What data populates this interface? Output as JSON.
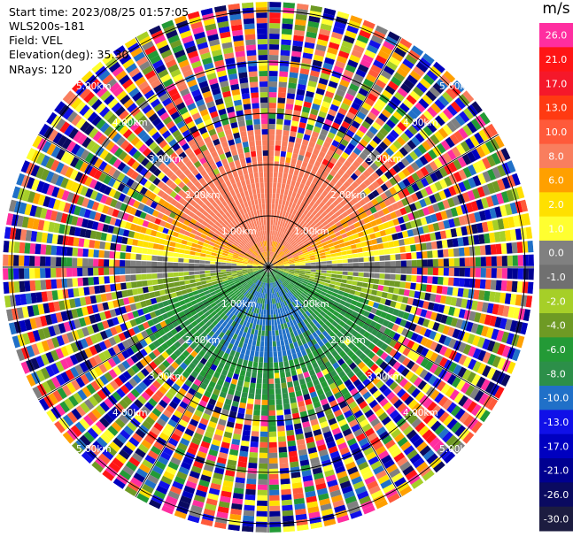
{
  "header": {
    "start_time": "Start time: 2023/08/25 01:57:05",
    "instrument": "WLS200s-181",
    "field": "Field: VEL",
    "elevation": "Elevation(deg): 35.30",
    "nrays": "NRays: 120"
  },
  "chart_data": {
    "type": "heatmap",
    "projection": "polar-ppi",
    "field": "VEL",
    "nrays": 120,
    "range_rings_km": [
      "1.00km",
      "2.00km",
      "3.00km",
      "4.00km",
      "5.00km"
    ],
    "colorbar": {
      "unit": "m/s",
      "ticks": [
        "26.0",
        "21.0",
        "17.0",
        "13.0",
        "10.0",
        "8.0",
        "6.0",
        "2.0",
        "1.0",
        "0.0",
        "-1.0",
        "-2.0",
        "-4.0",
        "-6.0",
        "-8.0",
        "-10.0",
        "-13.0",
        "-17.0",
        "-21.0",
        "-26.0",
        "-30.0"
      ],
      "colors": [
        "#ff2ea0",
        "#ff1515",
        "#f5182a",
        "#ff3a12",
        "#ff5a3a",
        "#f97e5e",
        "#ffa000",
        "#ffe000",
        "#ffff30",
        "#808080",
        "#707070",
        "#a6cf28",
        "#6e9a24",
        "#239a36",
        "#2c8f49",
        "#2070c8",
        "#1010e8",
        "#0000c0",
        "#000090",
        "#0a0a60",
        "#1c1c40"
      ]
    },
    "description_regions": "positive velocities (orange/yellow) to the north, negative (green/blue) to the south, noisy multicolored returns beyond ~2.5 km"
  }
}
